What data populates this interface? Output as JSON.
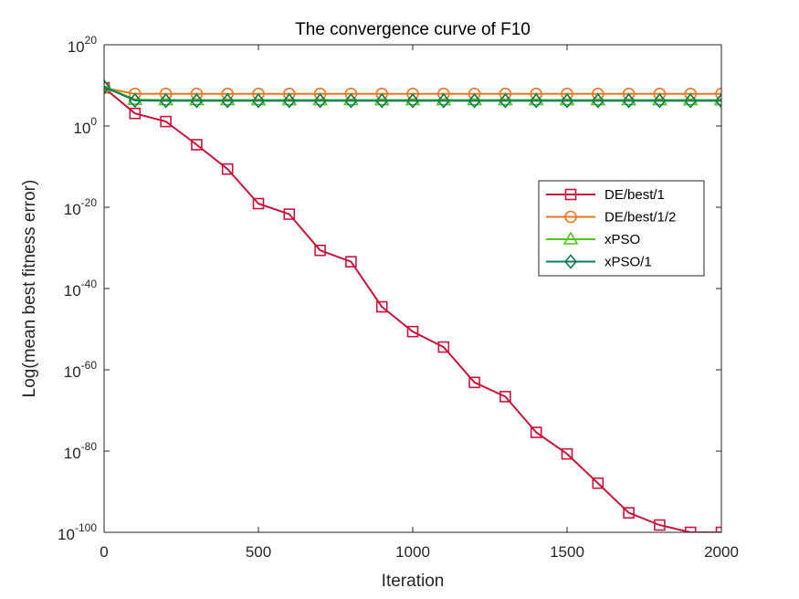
{
  "chart_data": {
    "type": "line",
    "title": "The convergence curve of F10",
    "xlabel": "Iteration",
    "ylabel": "Log(mean best fitness error)",
    "xlim": [
      0,
      2000
    ],
    "ylim_exponent": [
      -100,
      20
    ],
    "y_scale": "log",
    "x_ticks": [
      0,
      500,
      1000,
      1500,
      2000
    ],
    "y_ticks": [
      {
        "base": "10",
        "exp": "20",
        "value": 20
      },
      {
        "base": "10",
        "exp": "0",
        "value": 0
      },
      {
        "base": "10",
        "exp": "-20",
        "value": -20
      },
      {
        "base": "10",
        "exp": "-40",
        "value": -40
      },
      {
        "base": "10",
        "exp": "-60",
        "value": -60
      },
      {
        "base": "10",
        "exp": "-80",
        "value": -80
      },
      {
        "base": "10",
        "exp": "-100",
        "value": -100
      }
    ],
    "grid": false,
    "legend_position": "right-upper",
    "series": [
      {
        "name": "DE/best/1",
        "color": "#c8143c",
        "marker": "square",
        "x": [
          0,
          100,
          200,
          300,
          400,
          500,
          600,
          700,
          800,
          900,
          1000,
          1100,
          1200,
          1300,
          1400,
          1500,
          1600,
          1700,
          1800,
          1900,
          2000
        ],
        "log10_y": [
          9.4,
          3.1,
          1.1,
          -4.6,
          -10.6,
          -19.1,
          -21.7,
          -30.6,
          -33.4,
          -44.5,
          -50.6,
          -54.4,
          -63.1,
          -66.6,
          -75.4,
          -80.7,
          -87.9,
          -95.2,
          -98.2,
          -103.3,
          -107.0
        ]
      },
      {
        "name": "DE/best/1/2",
        "color": "#e87722",
        "marker": "circle",
        "x": [
          0,
          100,
          200,
          300,
          400,
          500,
          600,
          700,
          800,
          900,
          1000,
          1100,
          1200,
          1300,
          1400,
          1500,
          1600,
          1700,
          1800,
          1900,
          2000
        ],
        "log10_y": [
          9.4,
          7.9,
          7.9,
          7.9,
          7.9,
          7.9,
          7.9,
          7.9,
          7.9,
          7.9,
          7.9,
          7.9,
          7.9,
          7.9,
          7.9,
          7.9,
          7.9,
          7.9,
          7.9,
          7.9,
          7.9
        ]
      },
      {
        "name": "xPSO",
        "color": "#52c41a",
        "marker": "triangle",
        "x": [
          0,
          100,
          200,
          300,
          400,
          500,
          600,
          700,
          800,
          900,
          1000,
          1100,
          1200,
          1300,
          1400,
          1500,
          1600,
          1700,
          1800,
          1900,
          2000
        ],
        "log10_y": [
          9.8,
          6.5,
          6.4,
          6.4,
          6.4,
          6.4,
          6.4,
          6.4,
          6.4,
          6.4,
          6.4,
          6.4,
          6.4,
          6.4,
          6.4,
          6.4,
          6.4,
          6.4,
          6.4,
          6.4,
          6.4
        ]
      },
      {
        "name": "xPSO/1",
        "color": "#0f7a5a",
        "marker": "diamond",
        "x": [
          0,
          100,
          200,
          300,
          400,
          500,
          600,
          700,
          800,
          900,
          1000,
          1100,
          1200,
          1300,
          1400,
          1500,
          1600,
          1700,
          1800,
          1900,
          2000
        ],
        "log10_y": [
          9.6,
          6.3,
          6.2,
          6.2,
          6.2,
          6.2,
          6.2,
          6.2,
          6.2,
          6.2,
          6.2,
          6.2,
          6.2,
          6.2,
          6.2,
          6.2,
          6.2,
          6.2,
          6.2,
          6.2,
          6.2
        ]
      }
    ]
  }
}
